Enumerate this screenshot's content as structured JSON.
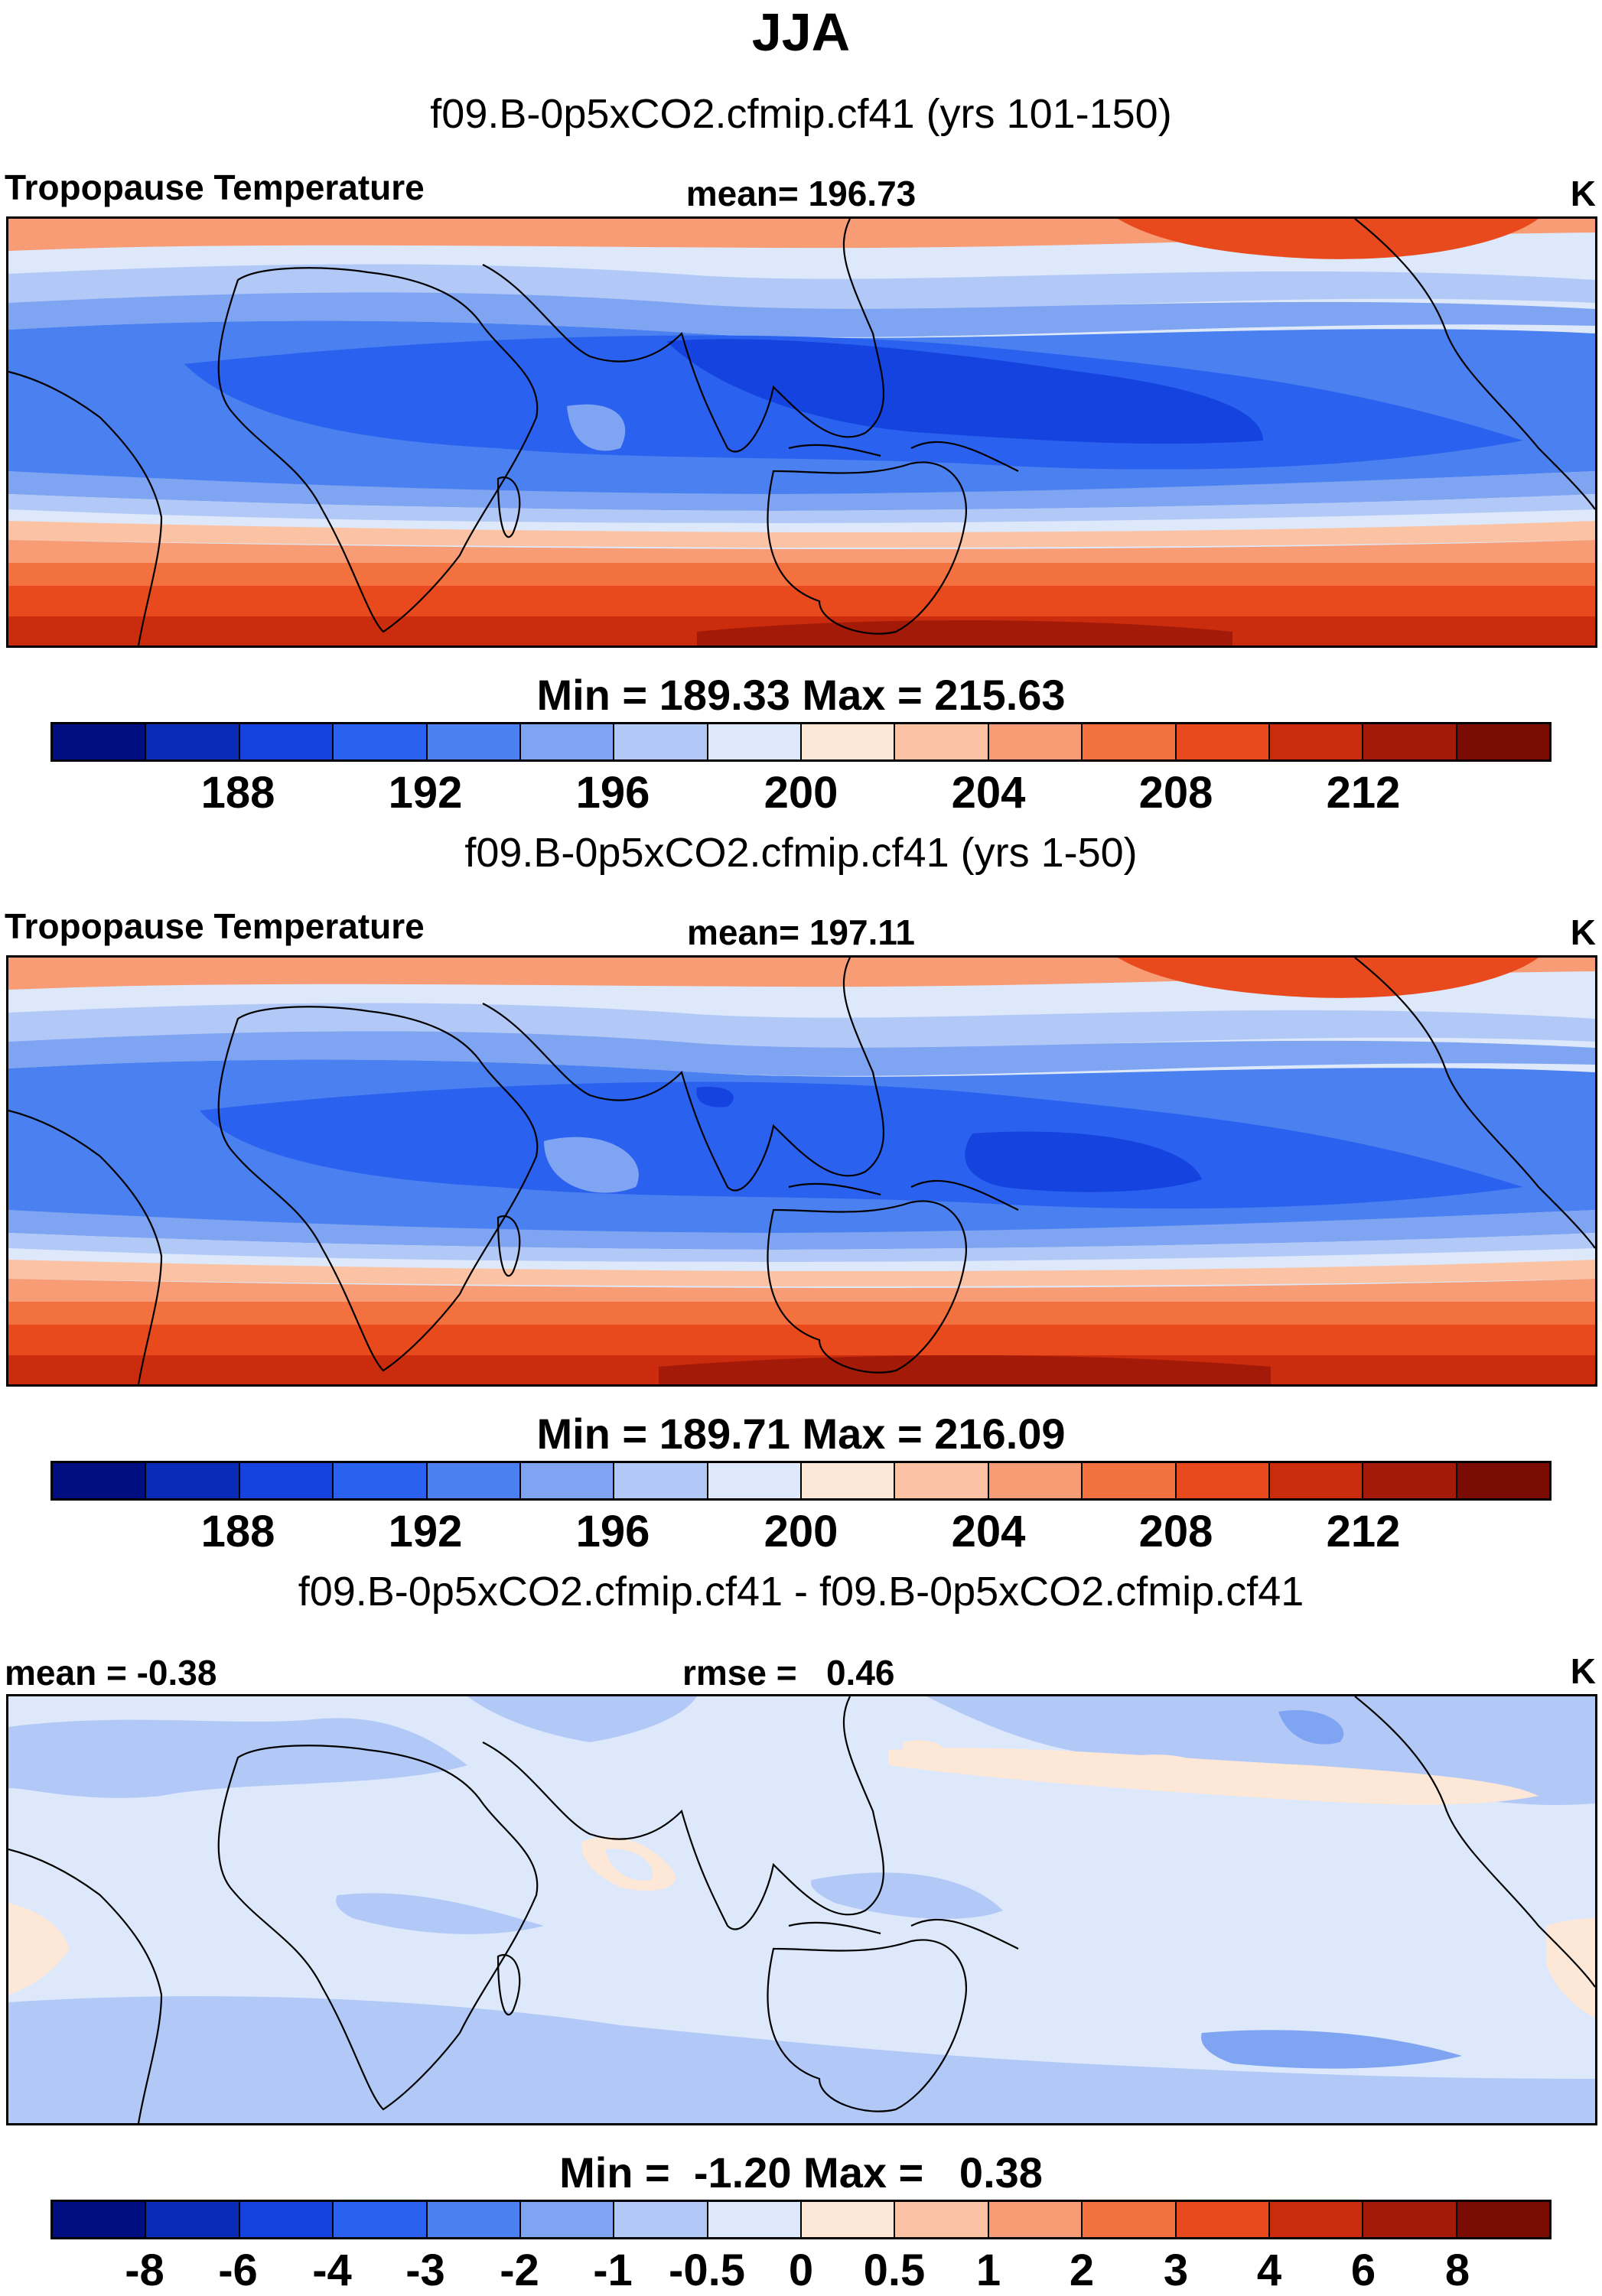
{
  "title": "JJA",
  "panels": [
    {
      "case_label": "f09.B-0p5xCO2.cfmip.cf41 (yrs 101-150)",
      "left_label": "Tropopause Temperature",
      "center_label": "mean= 196.73",
      "units": "K",
      "minmax": "Min = 189.33 Max = 215.63",
      "colorbar_ticks": [
        "188",
        "192",
        "196",
        "200",
        "204",
        "208",
        "212"
      ]
    },
    {
      "case_label": "f09.B-0p5xCO2.cfmip.cf41 (yrs 1-50)",
      "left_label": "Tropopause Temperature",
      "center_label": "mean= 197.11",
      "units": "K",
      "minmax": "Min = 189.71 Max = 216.09",
      "colorbar_ticks": [
        "188",
        "192",
        "196",
        "200",
        "204",
        "208",
        "212"
      ]
    },
    {
      "case_label": "f09.B-0p5xCO2.cfmip.cf41 - f09.B-0p5xCO2.cfmip.cf41",
      "left_label": "mean =  -0.38",
      "center_label": "rmse =   0.46",
      "units": "K",
      "minmax": "Min =  -1.20 Max =   0.38",
      "colorbar_ticks": [
        "-8",
        "-6",
        "-4",
        "-3",
        "-2",
        "-1",
        "-0.5",
        "0",
        "0.5",
        "1",
        "2",
        "3",
        "4",
        "6",
        "8"
      ]
    }
  ],
  "colorbar_colors": [
    "#000e80",
    "#0a2ab8",
    "#1543e0",
    "#2a62ef",
    "#4a80ef",
    "#7ea4f2",
    "#b2c9f7",
    "#dde8fb",
    "#fde7d6",
    "#fbc3a4",
    "#f79c75",
    "#f2713f",
    "#e84a1d",
    "#cc2c0e",
    "#a31a08",
    "#7a0c03"
  ]
}
